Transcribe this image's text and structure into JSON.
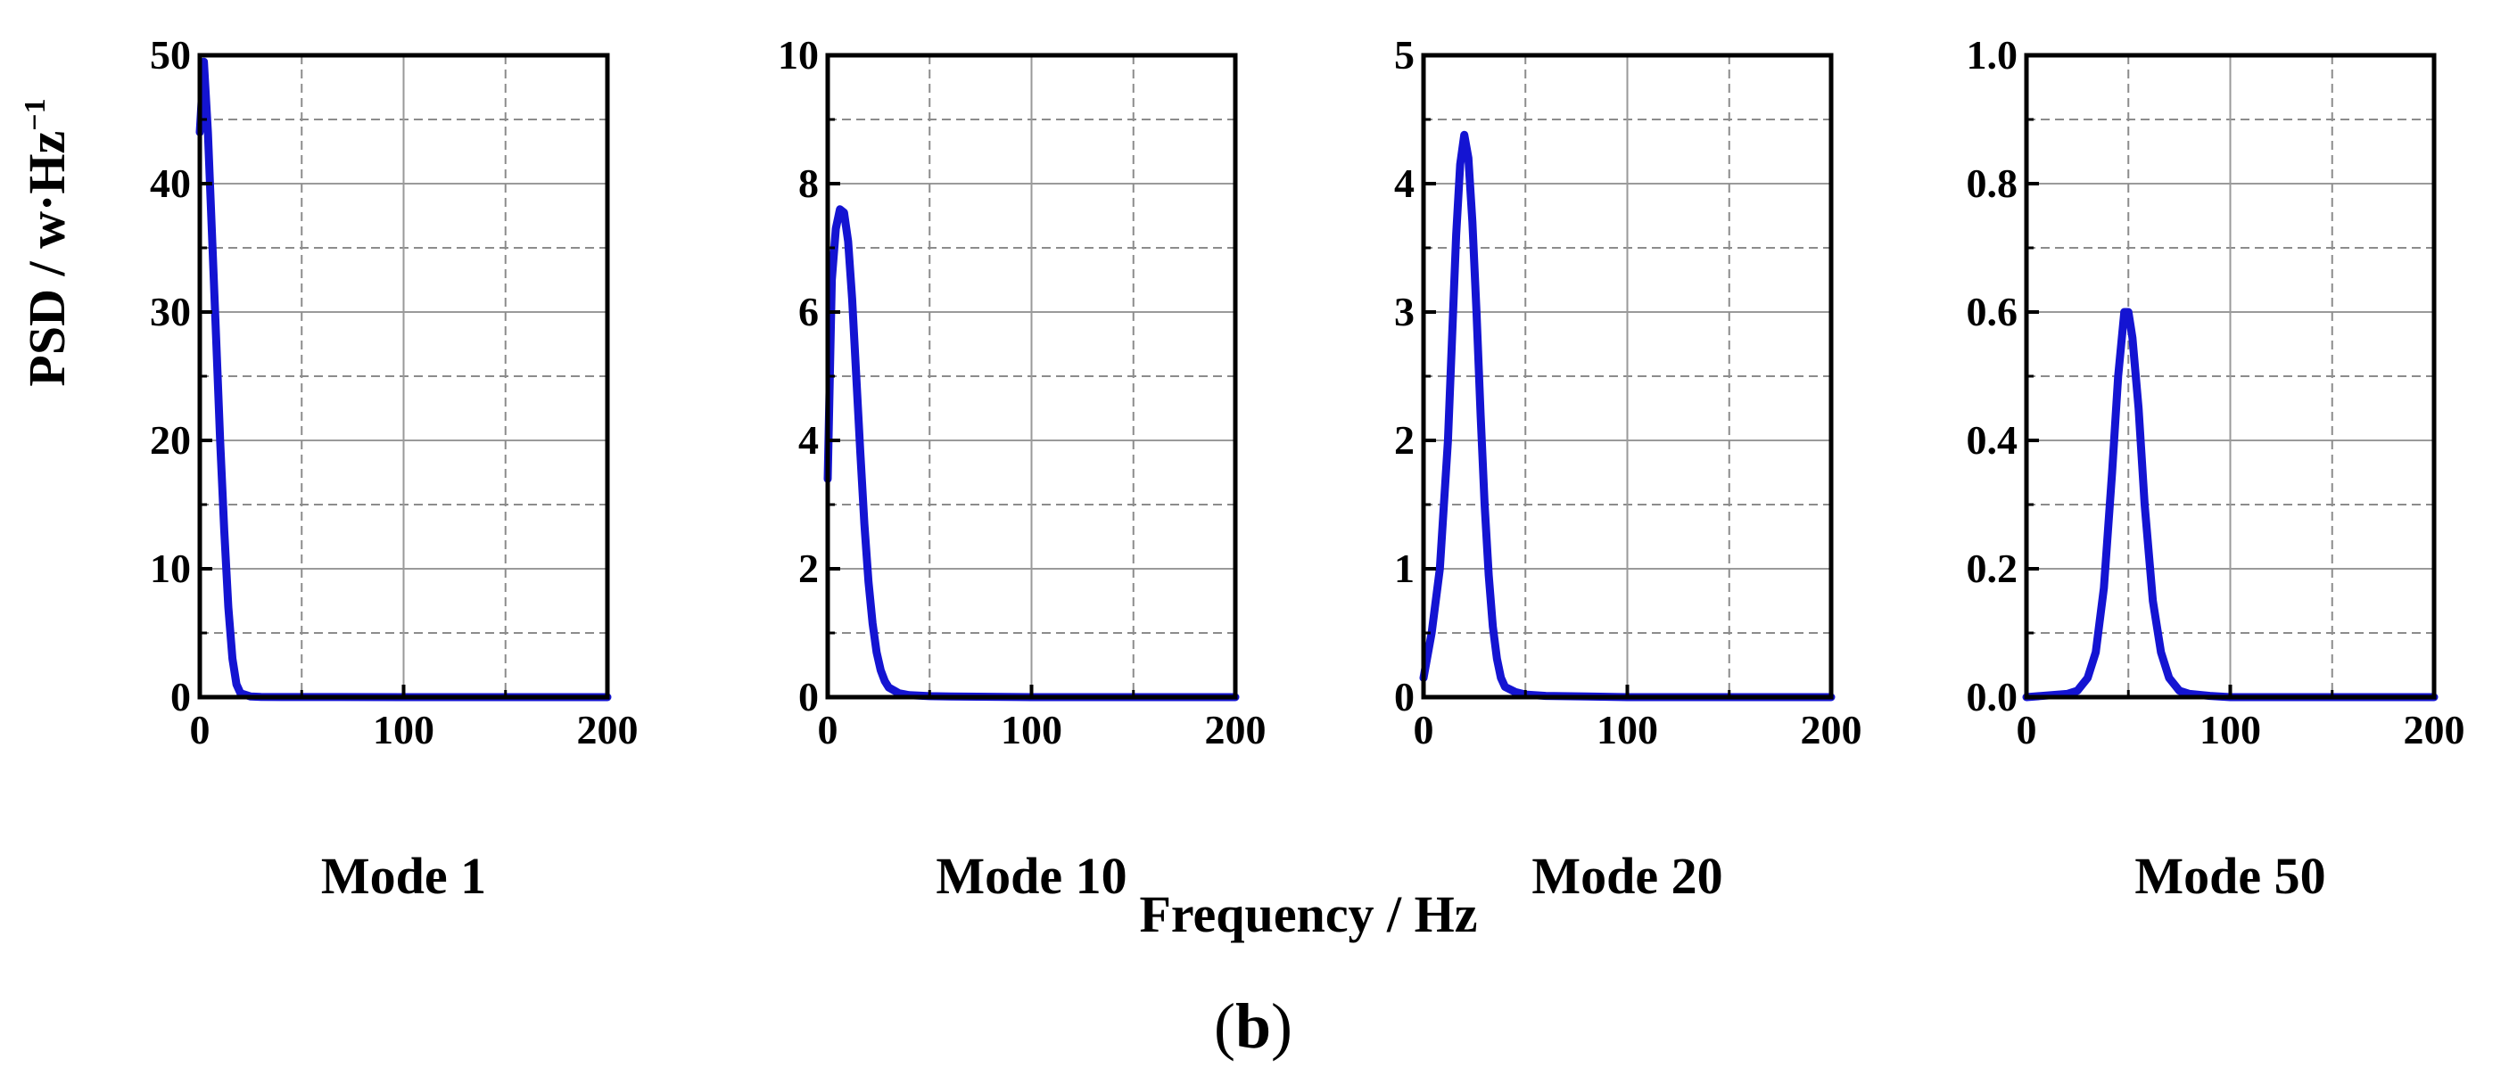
{
  "ylabel": "PSD / w·Hz",
  "ylabel_exponent": "−1",
  "xlabel": "Frequency / Hz",
  "panel_label_open": "(",
  "panel_label_letter": "b",
  "panel_label_close": ")",
  "line_color": "#1414d2",
  "chart_data": [
    {
      "type": "line",
      "title": "Mode 1",
      "xlim": [
        0,
        200
      ],
      "ylim": [
        0,
        50
      ],
      "xticks": [
        0,
        100,
        200
      ],
      "xtick_labels": [
        "0",
        "100",
        "200"
      ],
      "yticks": [
        0,
        10,
        20,
        30,
        40,
        50
      ],
      "ytick_labels": [
        "0",
        "10",
        "20",
        "30",
        "40",
        "50"
      ],
      "grid": true,
      "series": [
        {
          "name": "Mode 1",
          "x": [
            0,
            2,
            4,
            6,
            8,
            10,
            12,
            14,
            16,
            18,
            20,
            25,
            30,
            40,
            60,
            100,
            150,
            200
          ],
          "y": [
            44,
            49.5,
            44,
            36,
            28,
            20,
            13,
            7,
            3,
            1,
            0.3,
            0.05,
            0.02,
            0.01,
            0.005,
            0,
            0,
            0
          ]
        }
      ]
    },
    {
      "type": "line",
      "title": "Mode 10",
      "xlim": [
        0,
        200
      ],
      "ylim": [
        0,
        10
      ],
      "xticks": [
        0,
        100,
        200
      ],
      "xtick_labels": [
        "0",
        "100",
        "200"
      ],
      "yticks": [
        0,
        2,
        4,
        6,
        8,
        10
      ],
      "ytick_labels": [
        "0",
        "2",
        "4",
        "6",
        "8",
        "10"
      ],
      "grid": true,
      "series": [
        {
          "name": "Mode 10",
          "x": [
            0,
            2,
            4,
            6,
            8,
            10,
            12,
            14,
            16,
            18,
            20,
            22,
            24,
            26,
            28,
            30,
            35,
            40,
            50,
            60,
            80,
            100,
            150,
            200
          ],
          "y": [
            3.4,
            6.5,
            7.3,
            7.6,
            7.55,
            7.1,
            6.2,
            5.0,
            3.8,
            2.7,
            1.8,
            1.15,
            0.7,
            0.42,
            0.25,
            0.15,
            0.06,
            0.03,
            0.015,
            0.01,
            0.005,
            0,
            0,
            0
          ]
        }
      ]
    },
    {
      "type": "line",
      "title": "Mode 20",
      "xlim": [
        0,
        200
      ],
      "ylim": [
        0,
        5
      ],
      "xticks": [
        0,
        100,
        200
      ],
      "xtick_labels": [
        "0",
        "100",
        "200"
      ],
      "yticks": [
        0,
        1,
        2,
        3,
        4,
        5
      ],
      "ytick_labels": [
        "0",
        "1",
        "2",
        "3",
        "4",
        "5"
      ],
      "grid": true,
      "series": [
        {
          "name": "Mode 20",
          "x": [
            0,
            4,
            8,
            12,
            14,
            16,
            18,
            20,
            22,
            24,
            26,
            28,
            30,
            32,
            34,
            36,
            38,
            40,
            45,
            50,
            60,
            80,
            100,
            150,
            200
          ],
          "y": [
            0.15,
            0.5,
            1.0,
            2.0,
            2.8,
            3.6,
            4.15,
            4.38,
            4.2,
            3.7,
            3.0,
            2.2,
            1.5,
            0.95,
            0.55,
            0.3,
            0.15,
            0.08,
            0.04,
            0.02,
            0.01,
            0.005,
            0,
            0,
            0
          ]
        }
      ]
    },
    {
      "type": "line",
      "title": "Mode 50",
      "xlim": [
        0,
        200
      ],
      "ylim": [
        0,
        1.0
      ],
      "xticks": [
        0,
        100,
        200
      ],
      "xtick_labels": [
        "0",
        "100",
        "200"
      ],
      "yticks": [
        0,
        0.2,
        0.4,
        0.6,
        0.8,
        1.0
      ],
      "ytick_labels": [
        "0.0",
        "0.2",
        "0.4",
        "0.6",
        "0.8",
        "1.0"
      ],
      "grid": true,
      "series": [
        {
          "name": "Mode 50",
          "x": [
            0,
            20,
            25,
            30,
            34,
            38,
            42,
            45,
            48,
            50,
            52,
            55,
            58,
            62,
            66,
            70,
            75,
            80,
            90,
            100,
            150,
            200
          ],
          "y": [
            0,
            0.005,
            0.01,
            0.03,
            0.07,
            0.17,
            0.35,
            0.5,
            0.6,
            0.6,
            0.56,
            0.45,
            0.3,
            0.15,
            0.07,
            0.03,
            0.01,
            0.005,
            0.002,
            0,
            0,
            0
          ]
        }
      ]
    }
  ]
}
